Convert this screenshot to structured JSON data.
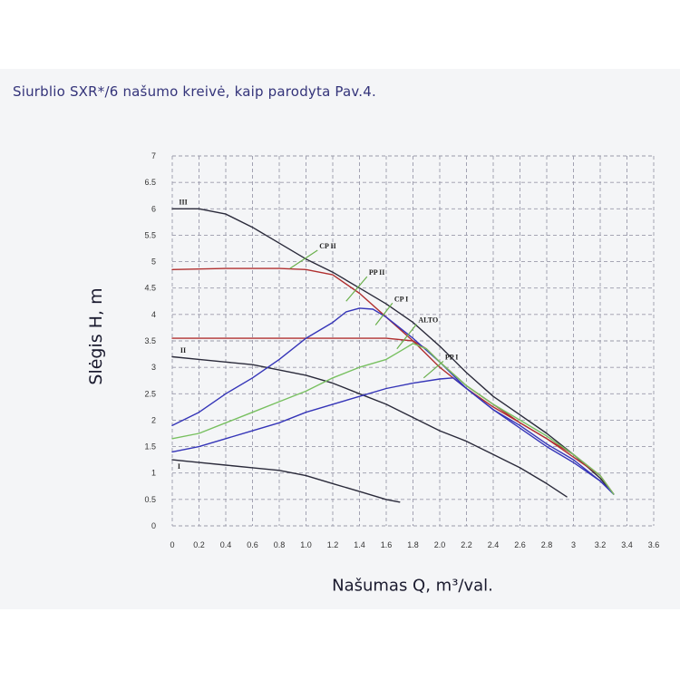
{
  "caption": "Siurblio SXR*/6 našumo kreivė, kaip parodyta Pav.4.",
  "chart_data": {
    "type": "line",
    "xlabel": "Našumas Q, m³/val.",
    "ylabel": "Slėgis H, m",
    "xlim": [
      0,
      3.6
    ],
    "ylim": [
      0,
      7
    ],
    "grid": true,
    "x_ticks": [
      "0",
      "0.2",
      "0.4",
      "0.6",
      "0.8",
      "1.0",
      "1.2",
      "1.4",
      "1.6",
      "1.8",
      "2.0",
      "2.2",
      "2.4",
      "2.6",
      "2.8",
      "3",
      "3.2",
      "3.4",
      "3.6"
    ],
    "y_ticks": [
      "0",
      "0.5",
      "1",
      "1.5",
      "2",
      "2.5",
      "3",
      "3.5",
      "4",
      "4.5",
      "5",
      "5.5",
      "6",
      "6.5",
      "7"
    ],
    "series": [
      {
        "name": "III",
        "color": "#2a2a3a",
        "x": [
          0,
          0.2,
          0.4,
          0.6,
          0.8,
          1.0,
          1.2,
          1.4,
          1.6,
          1.8,
          2.0,
          2.2,
          2.4,
          2.6,
          2.8,
          3.0,
          3.2,
          3.3
        ],
        "y": [
          6.0,
          6.0,
          5.9,
          5.65,
          5.35,
          5.05,
          4.8,
          4.5,
          4.2,
          3.85,
          3.4,
          2.9,
          2.45,
          2.1,
          1.75,
          1.35,
          0.9,
          0.6
        ]
      },
      {
        "name": "II",
        "color": "#2a2a3a",
        "x": [
          0,
          0.2,
          0.4,
          0.6,
          0.8,
          1.0,
          1.2,
          1.4,
          1.6,
          1.8,
          2.0,
          2.2,
          2.4,
          2.6,
          2.8,
          2.95
        ],
        "y": [
          3.2,
          3.15,
          3.1,
          3.05,
          2.95,
          2.85,
          2.7,
          2.5,
          2.3,
          2.05,
          1.8,
          1.6,
          1.35,
          1.1,
          0.8,
          0.55
        ]
      },
      {
        "name": "I",
        "color": "#2a2a3a",
        "x": [
          0,
          0.2,
          0.4,
          0.6,
          0.8,
          1.0,
          1.2,
          1.4,
          1.6,
          1.7
        ],
        "y": [
          1.25,
          1.2,
          1.15,
          1.1,
          1.05,
          0.95,
          0.8,
          0.65,
          0.5,
          0.45
        ]
      },
      {
        "name": "CP II",
        "color": "#b03030",
        "x": [
          0,
          0.4,
          0.8,
          1.0,
          1.2,
          1.4,
          1.6,
          1.8,
          2.0,
          2.2,
          2.4,
          2.6,
          2.8,
          3.0,
          3.2,
          3.3
        ],
        "y": [
          4.85,
          4.87,
          4.87,
          4.85,
          4.75,
          4.4,
          3.95,
          3.5,
          3.0,
          2.6,
          2.25,
          1.95,
          1.65,
          1.35,
          0.95,
          0.6
        ]
      },
      {
        "name": "CP I",
        "color": "#b03030",
        "x": [
          0,
          0.4,
          0.8,
          1.2,
          1.4,
          1.6,
          1.8,
          1.9,
          2.0,
          2.2,
          2.4,
          2.6,
          2.8,
          3.0,
          3.2,
          3.3
        ],
        "y": [
          3.55,
          3.55,
          3.55,
          3.55,
          3.55,
          3.55,
          3.5,
          3.35,
          3.1,
          2.65,
          2.3,
          1.95,
          1.65,
          1.3,
          0.95,
          0.6
        ]
      },
      {
        "name": "PP II",
        "color": "#3535b8",
        "x": [
          0,
          0.2,
          0.4,
          0.6,
          0.8,
          1.0,
          1.2,
          1.3,
          1.4,
          1.5,
          1.6,
          1.8,
          2.0,
          2.2,
          2.4,
          2.6,
          2.8,
          3.0,
          3.2,
          3.3
        ],
        "y": [
          1.9,
          2.15,
          2.5,
          2.8,
          3.15,
          3.55,
          3.85,
          4.05,
          4.12,
          4.1,
          3.95,
          3.55,
          3.1,
          2.6,
          2.2,
          1.9,
          1.55,
          1.25,
          0.85,
          0.6
        ]
      },
      {
        "name": "PP I",
        "color": "#3535b8",
        "x": [
          0,
          0.2,
          0.4,
          0.6,
          0.8,
          1.0,
          1.2,
          1.4,
          1.6,
          1.8,
          2.0,
          2.1,
          2.2,
          2.4,
          2.6,
          2.8,
          3.0,
          3.2,
          3.3
        ],
        "y": [
          1.4,
          1.5,
          1.65,
          1.8,
          1.95,
          2.15,
          2.3,
          2.45,
          2.6,
          2.7,
          2.78,
          2.8,
          2.6,
          2.2,
          1.85,
          1.5,
          1.2,
          0.85,
          0.6
        ]
      },
      {
        "name": "ALTO",
        "color": "#78c060",
        "x": [
          0,
          0.2,
          0.4,
          0.6,
          0.8,
          1.0,
          1.2,
          1.4,
          1.6,
          1.7,
          1.8,
          1.9,
          2.0,
          2.2,
          2.4,
          2.6,
          2.8,
          3.0,
          3.2,
          3.3
        ],
        "y": [
          1.65,
          1.75,
          1.95,
          2.15,
          2.35,
          2.55,
          2.8,
          3.0,
          3.15,
          3.3,
          3.45,
          3.35,
          3.1,
          2.65,
          2.3,
          2.0,
          1.7,
          1.35,
          0.95,
          0.6
        ]
      }
    ],
    "annotations": [
      {
        "text": "CP II",
        "x": 1.1,
        "y": 5.25,
        "line_to": [
          0.88,
          4.87
        ]
      },
      {
        "text": "PP II",
        "x": 1.47,
        "y": 4.75,
        "line_to": [
          1.3,
          4.25
        ]
      },
      {
        "text": "CP I",
        "x": 1.66,
        "y": 4.25,
        "line_to": [
          1.52,
          3.8
        ]
      },
      {
        "text": "ALTO",
        "x": 1.84,
        "y": 3.85,
        "line_to": [
          1.68,
          3.35
        ]
      },
      {
        "text": "PP I",
        "x": 2.04,
        "y": 3.15,
        "line_to": [
          1.88,
          2.8
        ]
      },
      {
        "text": "III",
        "x": 0.05,
        "y": 6.08
      },
      {
        "text": "II",
        "x": 0.06,
        "y": 3.28
      },
      {
        "text": "I",
        "x": 0.04,
        "y": 1.08
      }
    ]
  }
}
